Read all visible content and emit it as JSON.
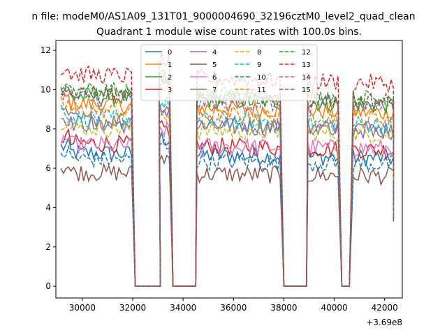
{
  "figure": {
    "suptitle": "n file: modeM0/AS1A09_131T01_9000004690_32196cztM0_level2_quad_clean",
    "title": "Quadrant 1 module wise count rates with 100.0s bins."
  },
  "chart_data": {
    "type": "line",
    "title": "Quadrant 1 module wise count rates with 100.0s bins.",
    "xlabel": "",
    "ylabel": "",
    "x_offset_label": "+3.69e8",
    "xlim": [
      28950,
      42700
    ],
    "ylim": [
      -0.6,
      12.5
    ],
    "xticks": [
      30000,
      32000,
      34000,
      36000,
      38000,
      40000,
      42000
    ],
    "yticks": [
      0,
      2,
      4,
      6,
      8,
      10,
      12
    ],
    "xtick_labels": [
      "30000",
      "32000",
      "34000",
      "36000",
      "38000",
      "40000",
      "42000"
    ],
    "ytick_labels": [
      "0",
      "2",
      "4",
      "6",
      "8",
      "10",
      "12"
    ],
    "grid": false,
    "legend_position": "upper-center",
    "legend_columns": 4,
    "bin_width": 100,
    "data_segments": [
      [
        29150,
        32000
      ],
      [
        33050,
        33500
      ],
      [
        34550,
        37900
      ],
      [
        38950,
        40200
      ],
      [
        40750,
        42400
      ]
    ],
    "zero_segments": [
      [
        32100,
        33100
      ],
      [
        33600,
        34500
      ],
      [
        38000,
        38900
      ],
      [
        40300,
        40650
      ]
    ],
    "series": [
      {
        "name": "0",
        "color": "#1f77b4",
        "dash": "solid",
        "level": 6.8,
        "level_last": 6.5
      },
      {
        "name": "1",
        "color": "#ff7f0e",
        "dash": "solid",
        "level": 9.3,
        "level_last": 8.8
      },
      {
        "name": "2",
        "color": "#2ca02c",
        "dash": "solid",
        "level": 9.7,
        "level_last": 9.2
      },
      {
        "name": "3",
        "color": "#d62728",
        "dash": "solid",
        "level": 7.3,
        "level_last": 6.9
      },
      {
        "name": "4",
        "color": "#9467bd",
        "dash": "solid",
        "level": 8.3,
        "level_last": 7.9
      },
      {
        "name": "5",
        "color": "#8c564b",
        "dash": "solid",
        "level": 5.8,
        "level_last": 5.6
      },
      {
        "name": "6",
        "color": "#e377c2",
        "dash": "solid",
        "level": 7.2,
        "level_last": 7.0
      },
      {
        "name": "7",
        "color": "#7f7f7f",
        "dash": "solid",
        "level": 8.5,
        "level_last": 8.0
      },
      {
        "name": "8",
        "color": "#bcbd22",
        "dash": "dashed",
        "level": 8.1,
        "level_last": 7.7
      },
      {
        "name": "9",
        "color": "#17becf",
        "dash": "dashed",
        "level": 8.6,
        "level_last": 8.2
      },
      {
        "name": "10",
        "color": "#1f77b4",
        "dash": "dashed",
        "level": 6.5,
        "level_last": 6.2
      },
      {
        "name": "11",
        "color": "#ff7f0e",
        "dash": "dashed",
        "level": 9.0,
        "level_last": 8.5
      },
      {
        "name": "12",
        "color": "#2ca02c",
        "dash": "dashed",
        "level": 10.0,
        "level_last": 9.5
      },
      {
        "name": "13",
        "color": "#d62728",
        "dash": "dashed",
        "level": 10.8,
        "level_last": 10.3
      },
      {
        "name": "14",
        "color": "#9467bd",
        "dash": "dashed",
        "level": 9.6,
        "level_last": 9.1
      },
      {
        "name": "15",
        "color": "#8c564b",
        "dash": "dashed",
        "level": 9.9,
        "level_last": 9.4
      }
    ]
  }
}
